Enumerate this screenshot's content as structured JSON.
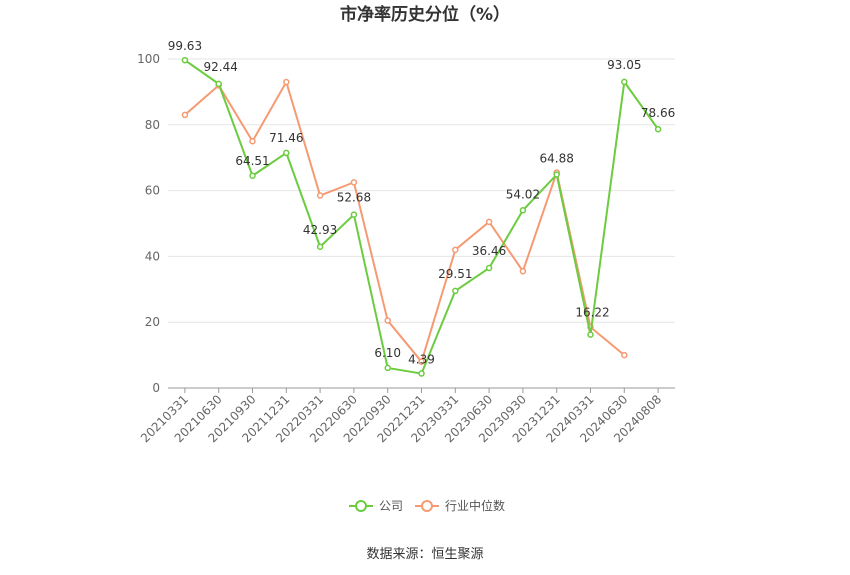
{
  "chart_data": {
    "type": "line",
    "title": "市净率历史分位（%）",
    "xlabel": "",
    "ylabel": "",
    "ylim": [
      0,
      100
    ],
    "yticks": [
      0,
      20,
      40,
      60,
      80,
      100
    ],
    "grid": true,
    "legend_position": "bottom-center",
    "categories": [
      "20210331",
      "20210630",
      "20210930",
      "20211231",
      "20220331",
      "20220630",
      "20220930",
      "20221231",
      "20230331",
      "20230630",
      "20230930",
      "20231231",
      "20240331",
      "20240630",
      "20240808"
    ],
    "series": [
      {
        "name": "公司",
        "color": "#6bcc3f",
        "values": [
          99.63,
          92.44,
          64.51,
          71.46,
          42.93,
          52.68,
          6.1,
          4.39,
          29.51,
          36.46,
          54.02,
          64.88,
          16.22,
          93.05,
          78.66
        ],
        "labels": [
          "99.63",
          "92.44",
          "64.51",
          "71.46",
          "42.93",
          "52.68",
          "6.10",
          "4.39",
          "29.51",
          "36.46",
          "54.02",
          "64.88",
          "16.22",
          "93.05",
          "78.66"
        ]
      },
      {
        "name": "行业中位数",
        "color": "#f59a73",
        "values": [
          83,
          92,
          75,
          93,
          58.5,
          62.5,
          20.5,
          8,
          42,
          50.5,
          35.5,
          65.5,
          18.5,
          10,
          null
        ]
      }
    ]
  },
  "source": "数据来源：恒生聚源"
}
